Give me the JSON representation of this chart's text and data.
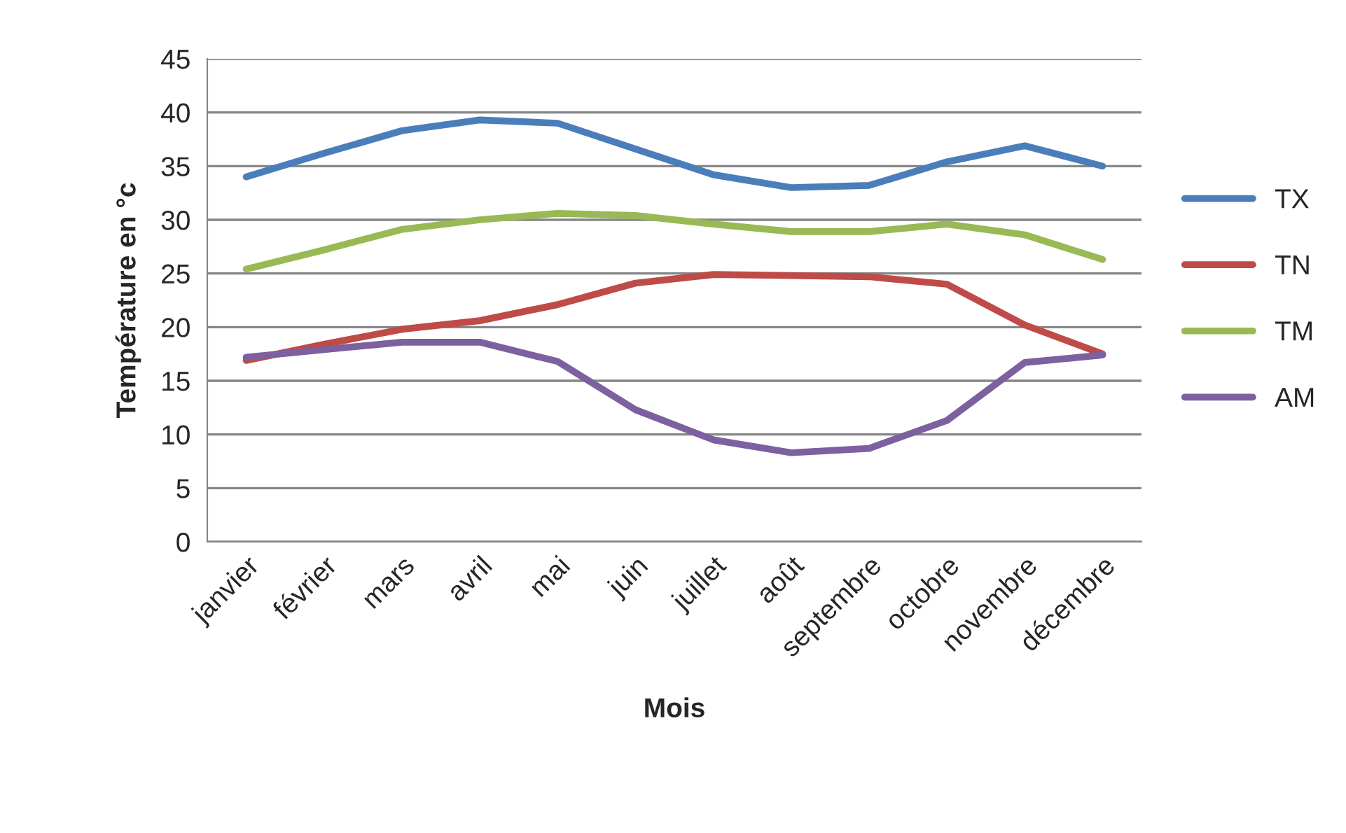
{
  "chart_data": {
    "type": "line",
    "xlabel": "Mois",
    "ylabel": "Température en °c",
    "categories": [
      "janvier",
      "février",
      "mars",
      "avril",
      "mai",
      "juin",
      "juillet",
      "août",
      "septembre",
      "octobre",
      "novembre",
      "décembre"
    ],
    "series": [
      {
        "name": "TX",
        "color": "#4a7ebb",
        "values": [
          34.0,
          36.2,
          38.3,
          39.3,
          39.0,
          36.6,
          34.2,
          33.0,
          33.2,
          35.4,
          36.9,
          35.0
        ]
      },
      {
        "name": "TN",
        "color": "#be4b48",
        "values": [
          16.9,
          18.4,
          19.8,
          20.6,
          22.1,
          24.1,
          24.9,
          24.8,
          24.7,
          24.0,
          20.2,
          17.5
        ]
      },
      {
        "name": "TM",
        "color": "#98b954",
        "values": [
          25.4,
          27.2,
          29.1,
          30.0,
          30.6,
          30.4,
          29.6,
          28.9,
          28.9,
          29.6,
          28.6,
          26.3
        ]
      },
      {
        "name": "AM",
        "color": "#7d60a0",
        "values": [
          17.2,
          17.9,
          18.6,
          18.6,
          16.8,
          12.3,
          9.5,
          8.3,
          8.7,
          11.3,
          16.7,
          17.4
        ]
      }
    ],
    "ylim": [
      0,
      45
    ],
    "yticks": [
      0,
      5,
      10,
      15,
      20,
      25,
      30,
      35,
      40,
      45
    ],
    "grid": "y",
    "legend": "right",
    "marker": "none",
    "line_style": "solid"
  }
}
